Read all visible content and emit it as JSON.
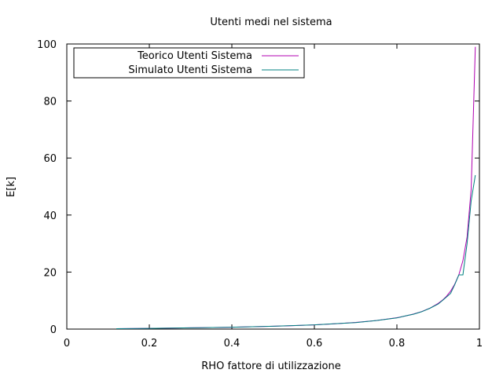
{
  "chart_data": {
    "type": "line",
    "title": "Utenti medi nel sistema",
    "xlabel": "RHO fattore di utilizzazione",
    "ylabel": "E[k]",
    "xlim": [
      0,
      1
    ],
    "ylim": [
      0,
      100
    ],
    "xticks": [
      "0",
      "0.2",
      "0.4",
      "0.6",
      "0.8",
      "1"
    ],
    "yticks": [
      "0",
      "20",
      "40",
      "60",
      "80",
      "100"
    ],
    "grid": false,
    "legend": "top-left",
    "series": [
      {
        "name": "Teorico Utenti Sistema",
        "color": "#b000b0",
        "x": [
          0.12,
          0.2,
          0.3,
          0.4,
          0.5,
          0.55,
          0.6,
          0.65,
          0.7,
          0.75,
          0.8,
          0.82,
          0.84,
          0.86,
          0.88,
          0.9,
          0.91,
          0.92,
          0.93,
          0.94,
          0.95,
          0.96,
          0.97,
          0.98,
          0.99
        ],
        "y": [
          0.14,
          0.25,
          0.43,
          0.67,
          1.0,
          1.22,
          1.5,
          1.86,
          2.33,
          3.0,
          4.0,
          4.56,
          5.25,
          6.14,
          7.33,
          9.0,
          10.1,
          11.5,
          13.3,
          15.7,
          19.0,
          24.0,
          32.3,
          49.0,
          99.0
        ]
      },
      {
        "name": "Simulato Utenti Sistema",
        "color": "#008080",
        "x": [
          0.12,
          0.2,
          0.3,
          0.4,
          0.5,
          0.55,
          0.6,
          0.65,
          0.7,
          0.75,
          0.8,
          0.82,
          0.84,
          0.86,
          0.88,
          0.9,
          0.91,
          0.92,
          0.93,
          0.94,
          0.95,
          0.96,
          0.97,
          0.98,
          0.99
        ],
        "y": [
          0.14,
          0.25,
          0.44,
          0.66,
          1.0,
          1.25,
          1.5,
          1.9,
          2.3,
          3.0,
          3.9,
          4.6,
          5.2,
          6.1,
          7.3,
          8.8,
          10.0,
          11.2,
          12.5,
          15.5,
          19.0,
          19.0,
          30.0,
          45.0,
          54.0
        ]
      }
    ]
  }
}
